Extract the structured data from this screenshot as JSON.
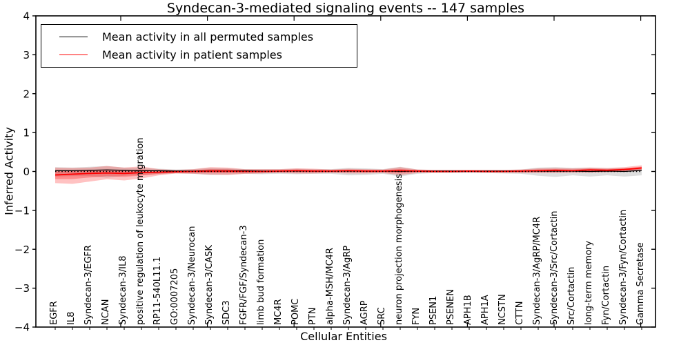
{
  "title": "Syndecan-3-mediated signaling events -- 147 samples",
  "legend": {
    "items": [
      {
        "label": "Mean activity in all permuted samples",
        "color": "#000000"
      },
      {
        "label": "Mean activity in patient samples",
        "color": "#ff0000"
      }
    ],
    "position": "upper left"
  },
  "colors": {
    "permuted_line": "#000000",
    "patient_line": "#ff0000",
    "permuted_band": "#000000",
    "patient_band": "#ff0000",
    "frame": "#000000",
    "background": "#ffffff"
  },
  "chart_data": {
    "type": "line",
    "title": "Syndecan-3-mediated signaling events -- 147 samples",
    "xlabel": "Cellular Entities",
    "ylabel": "Inferred Activity",
    "ylim": [
      -4,
      4
    ],
    "ytick_values": [
      -4,
      -3,
      -2,
      -1,
      0,
      1,
      2,
      3,
      4
    ],
    "ytick_labels": [
      "−4",
      "−3",
      "−2",
      "−1",
      "0",
      "1",
      "2",
      "3",
      "4"
    ],
    "grid": false,
    "legend_position": "upper left",
    "zero_line": {
      "y": 0,
      "style": "dotted"
    },
    "categories": [
      "EGFR",
      "IL8",
      "Syndecan-3/EGFR",
      "NCAN",
      "Syndecan-3/IL8",
      "positive regulation of leukocyte migration",
      "RP11-540L11.1",
      "GO:0007205",
      "Syndecan-3/Neurocan",
      "Syndecan-3/CASK",
      "SDC3",
      "FGFR/FGF/Syndecan-3",
      "limb bud formation",
      "MC4R",
      "POMC",
      "PTN",
      "alpha-MSH/MC4R",
      "Syndecan-3/AgRP",
      "AGRP",
      "SRC",
      "neuron projection morphogenesis",
      "FYN",
      "PSEN1",
      "PSENEN",
      "APH1B",
      "APH1A",
      "NCSTN",
      "CTTN",
      "Syndecan-3/AgRP/MC4R",
      "Syndecan-3/Src/Cortactin",
      "Src/Cortactin",
      "long-term memory",
      "Fyn/Cortactin",
      "Syndecan-3/Fyn/Cortactin",
      "Gamma Secretase"
    ],
    "series": [
      {
        "name": "Mean activity in all permuted samples",
        "color": "#000000",
        "values": [
          0.02,
          0.02,
          0.03,
          0.04,
          0.03,
          0.02,
          0.02,
          0.01,
          0.01,
          0.02,
          0.02,
          0.02,
          0.01,
          0.01,
          0.01,
          0.01,
          0.01,
          0.01,
          0.01,
          0.01,
          0.0,
          0.01,
          0.01,
          0.01,
          0.01,
          0.01,
          0.01,
          0.01,
          0.01,
          0.01,
          0.01,
          0.0,
          0.01,
          0.0,
          0.03
        ]
      },
      {
        "name": "Mean activity in patient samples",
        "color": "#ff0000",
        "values": [
          -0.09,
          -0.07,
          -0.05,
          -0.04,
          -0.05,
          -0.03,
          -0.02,
          -0.01,
          0.0,
          0.01,
          0.01,
          0.0,
          0.0,
          0.01,
          0.02,
          0.01,
          0.01,
          0.02,
          0.01,
          0.01,
          0.02,
          0.01,
          0.0,
          0.0,
          0.01,
          0.0,
          0.0,
          0.01,
          0.02,
          0.03,
          0.02,
          0.04,
          0.03,
          0.05,
          0.09
        ]
      }
    ],
    "bands": [
      {
        "name": "permuted samples range",
        "color": "#000000",
        "opacity": 0.13,
        "upper": [
          0.11,
          0.1,
          0.12,
          0.14,
          0.1,
          0.09,
          0.07,
          0.05,
          0.06,
          0.09,
          0.08,
          0.06,
          0.06,
          0.06,
          0.07,
          0.06,
          0.06,
          0.09,
          0.08,
          0.06,
          0.12,
          0.05,
          0.04,
          0.04,
          0.04,
          0.04,
          0.04,
          0.05,
          0.1,
          0.11,
          0.09,
          0.1,
          0.08,
          0.09,
          0.06
        ],
        "lower": [
          -0.13,
          -0.12,
          -0.12,
          -0.16,
          -0.11,
          -0.09,
          -0.07,
          -0.05,
          -0.06,
          -0.09,
          -0.08,
          -0.06,
          -0.07,
          -0.06,
          -0.07,
          -0.06,
          -0.06,
          -0.1,
          -0.09,
          -0.06,
          -0.13,
          -0.06,
          -0.04,
          -0.04,
          -0.04,
          -0.04,
          -0.05,
          -0.06,
          -0.11,
          -0.14,
          -0.1,
          -0.13,
          -0.1,
          -0.13,
          -0.1
        ]
      },
      {
        "name": "patient samples range",
        "color": "#ff0000",
        "opacity": 0.24,
        "upper": [
          0.1,
          0.09,
          0.1,
          0.14,
          0.1,
          0.13,
          0.06,
          0.04,
          0.06,
          0.11,
          0.1,
          0.06,
          0.06,
          0.06,
          0.08,
          0.07,
          0.05,
          0.07,
          0.06,
          0.05,
          0.11,
          0.05,
          0.04,
          0.04,
          0.04,
          0.04,
          0.04,
          0.05,
          0.08,
          0.09,
          0.08,
          0.1,
          0.09,
          0.11,
          0.16
        ],
        "lower": [
          -0.3,
          -0.32,
          -0.26,
          -0.2,
          -0.23,
          -0.18,
          -0.1,
          -0.05,
          -0.06,
          -0.08,
          -0.09,
          -0.06,
          -0.05,
          -0.04,
          -0.05,
          -0.05,
          -0.04,
          -0.05,
          -0.05,
          -0.04,
          -0.09,
          -0.04,
          -0.03,
          -0.03,
          -0.03,
          -0.03,
          -0.03,
          -0.04,
          -0.04,
          -0.04,
          -0.03,
          -0.03,
          -0.02,
          -0.01,
          0.02
        ]
      }
    ]
  }
}
